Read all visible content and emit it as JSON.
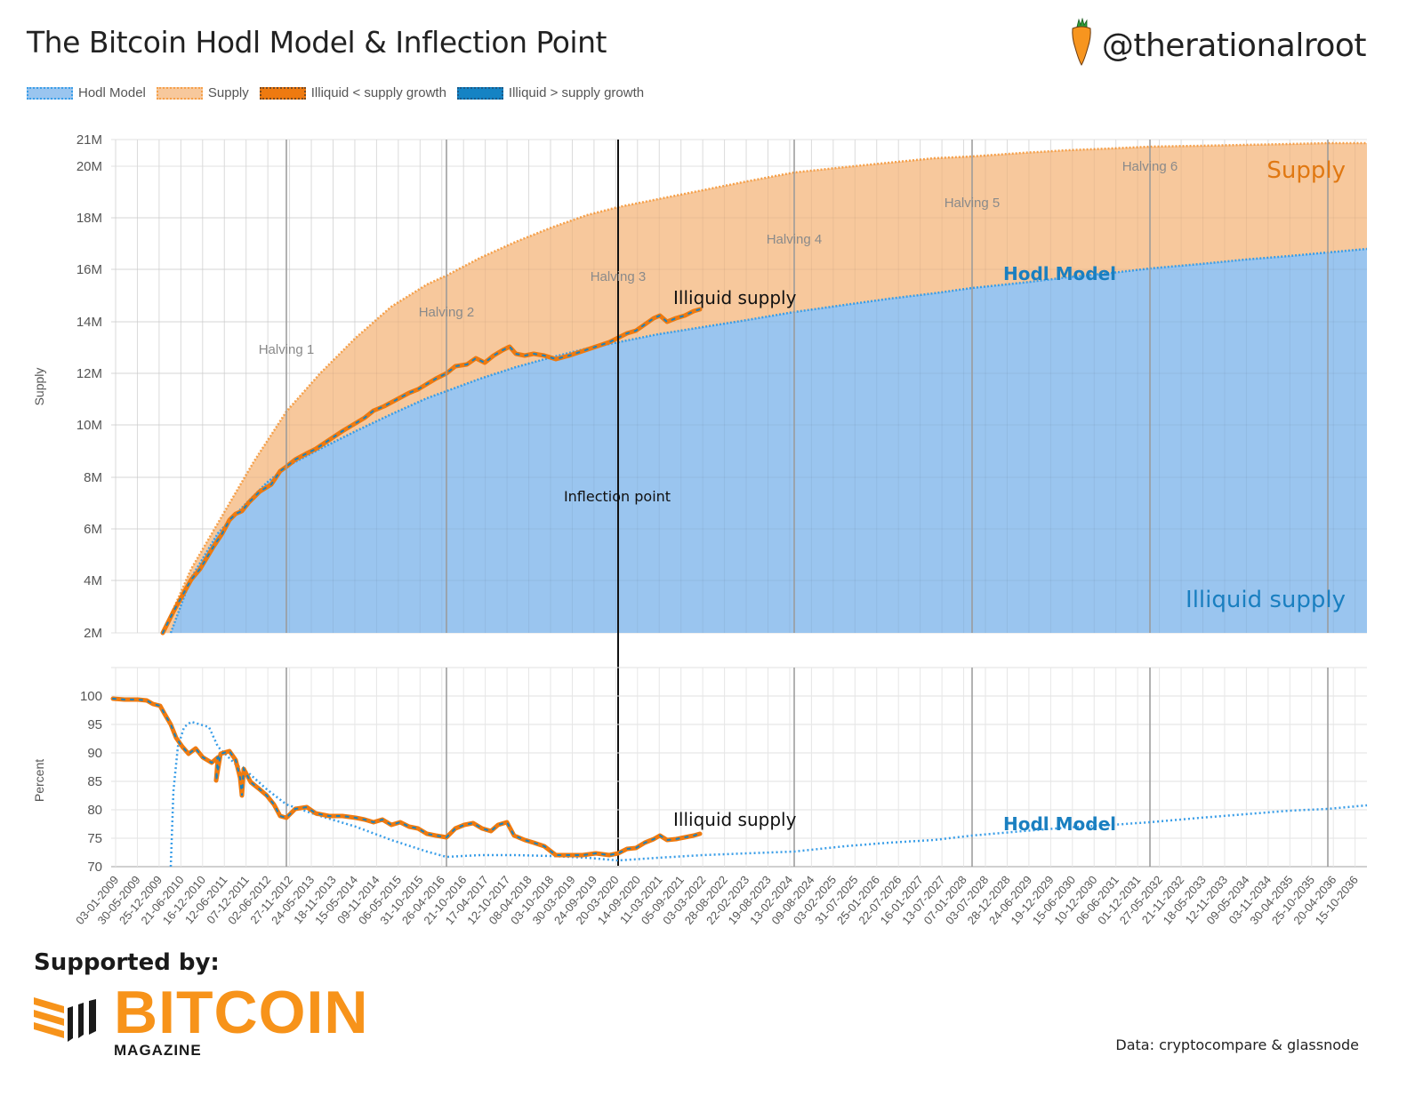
{
  "header": {
    "title": "The Bitcoin Hodl Model & Inflection Point",
    "handle": "@therationalroot",
    "handle_icon": "carrot-icon"
  },
  "legend": [
    {
      "label": "Hodl Model",
      "fill": "#9ac5ef",
      "border": "#3a9ee8"
    },
    {
      "label": "Supply",
      "fill": "#f7c89c",
      "border": "#f5a04a"
    },
    {
      "label": "Illiquid < supply growth",
      "fill": "#ee7a10",
      "border": "#7a4a20"
    },
    {
      "label": "Illiquid > supply growth",
      "fill": "#1583c4",
      "border": "#1a5a8a"
    }
  ],
  "colors": {
    "hodl_fill": "#9ac5ef",
    "hodl_line": "#3a9ee8",
    "supply_fill": "#f7c89c",
    "supply_line": "#f5a04a",
    "illiquid_orange": "#ee7a10",
    "illiquid_blue": "#1583c4",
    "annotation_blue": "#1a7fc0",
    "annotation_orange": "#e07812",
    "grid": "#e2e2e2",
    "halving_line": "#999999"
  },
  "annotations": {
    "top": {
      "supply": "Supply",
      "hodl_model": "Hodl Model",
      "illiquid_supply_blue": "Illiquid supply",
      "illiquid_supply_black": "Illiquid supply",
      "inflection_point": "Inflection point"
    },
    "bottom": {
      "illiquid_supply": "Illiquid supply",
      "hodl_model": "Hodl Model"
    }
  },
  "footer": {
    "supported_by": "Supported by:",
    "logo_word": "BITCOIN",
    "logo_sub": "MAGAZINE",
    "source": "Data: cryptocompare & glassnode"
  },
  "chart_data": [
    {
      "type": "area",
      "title": "The Bitcoin Hodl Model & Inflection Point",
      "ylabel": "Supply",
      "xlabel": "",
      "ylim": [
        2000000,
        21000000
      ],
      "y_ticks": [
        "2M",
        "4M",
        "6M",
        "8M",
        "10M",
        "12M",
        "14M",
        "16M",
        "18M",
        "20M",
        "21M"
      ],
      "grid": true,
      "legend_position": "top-left",
      "halvings": [
        {
          "label": "Halving 1",
          "date": "28-11-2012"
        },
        {
          "label": "Halving 2",
          "date": "09-07-2016"
        },
        {
          "label": "Halving 3",
          "date": "11-05-2020"
        },
        {
          "label": "Halving 4",
          "date": "2024"
        },
        {
          "label": "Halving 5",
          "date": "2028"
        },
        {
          "label": "Halving 6",
          "date": "2032"
        }
      ],
      "inflection_point_date": "11-05-2020",
      "x": [
        "2009-12",
        "2010-06",
        "2011-06",
        "2012-06",
        "2012-11",
        "2014-06",
        "2016-07",
        "2018-06",
        "2020-05",
        "2022-01",
        "2024-04",
        "2028-03",
        "2032-04",
        "2036-10"
      ],
      "series": [
        {
          "name": "Supply",
          "values": [
            2.0,
            3.5,
            6.5,
            8.9,
            10.5,
            12.8,
            15.8,
            17.2,
            18.4,
            18.9,
            19.7,
            20.4,
            20.75,
            20.9
          ]
        },
        {
          "name": "Hodl Model",
          "values": [
            2.0,
            3.6,
            6.0,
            7.8,
            8.6,
            10.0,
            11.3,
            12.4,
            13.1,
            13.8,
            14.4,
            15.3,
            16.0,
            16.8
          ]
        },
        {
          "name": "Illiquid supply",
          "values": [
            2.0,
            3.8,
            6.3,
            7.9,
            8.5,
            10.4,
            11.8,
            12.7,
            13.2,
            14.4,
            null,
            null,
            null,
            null
          ]
        }
      ],
      "units": "millions BTC"
    },
    {
      "type": "line",
      "ylabel": "Percent",
      "ylim": [
        70,
        100
      ],
      "y_ticks": [
        70,
        75,
        80,
        85,
        90,
        95,
        100
      ],
      "grid": true,
      "x": [
        "2009-01",
        "2009-12",
        "2010-06",
        "2010-11",
        "2011-06",
        "2011-12",
        "2012-11",
        "2014-01",
        "2015-06",
        "2016-07",
        "2017-10",
        "2019-01",
        "2020-05",
        "2021-04",
        "2022-01",
        "2024-04",
        "2028-03",
        "2032-04",
        "2036-10"
      ],
      "series": [
        {
          "name": "Illiquid supply %",
          "values": [
            99.5,
            99.0,
            92.0,
            90.0,
            89.0,
            84.0,
            80.5,
            78.5,
            77.5,
            75.0,
            78.0,
            72.0,
            72.5,
            76.0,
            76.0,
            null,
            null,
            null,
            null
          ]
        },
        {
          "name": "Hodl Model %",
          "values": [
            null,
            null,
            70.0,
            95.5,
            90.0,
            86.0,
            80.0,
            78.0,
            75.5,
            71.8,
            72.0,
            71.8,
            71.2,
            71.8,
            72.0,
            72.8,
            75.0,
            77.5,
            80.5
          ]
        }
      ]
    }
  ],
  "x_tick_labels": [
    "03-01-2009",
    "30-05-2009",
    "25-12-2009",
    "21-06-2010",
    "16-12-2010",
    "12-06-2011",
    "07-12-2011",
    "02-06-2012",
    "27-11-2012",
    "24-05-2013",
    "18-11-2013",
    "15-05-2014",
    "09-11-2014",
    "06-05-2015",
    "31-10-2015",
    "26-04-2016",
    "21-10-2016",
    "17-04-2017",
    "12-10-2017",
    "08-04-2018",
    "03-10-2018",
    "30-03-2019",
    "24-09-2019",
    "20-03-2020",
    "14-09-2020",
    "11-03-2021",
    "05-09-2021",
    "03-03-2022",
    "28-08-2022",
    "22-02-2023",
    "19-08-2023",
    "13-02-2024",
    "09-08-2024",
    "03-02-2025",
    "31-07-2025",
    "25-01-2026",
    "22-07-2026",
    "16-01-2027",
    "13-07-2027",
    "07-01-2028",
    "03-07-2028",
    "28-12-2028",
    "24-06-2029",
    "19-12-2029",
    "15-06-2030",
    "10-12-2030",
    "06-06-2031",
    "01-12-2031",
    "27-05-2032",
    "21-11-2032",
    "18-05-2033",
    "12-11-2033",
    "09-05-2034",
    "03-11-2034",
    "30-04-2035",
    "25-10-2035",
    "20-04-2036",
    "15-10-2036"
  ]
}
